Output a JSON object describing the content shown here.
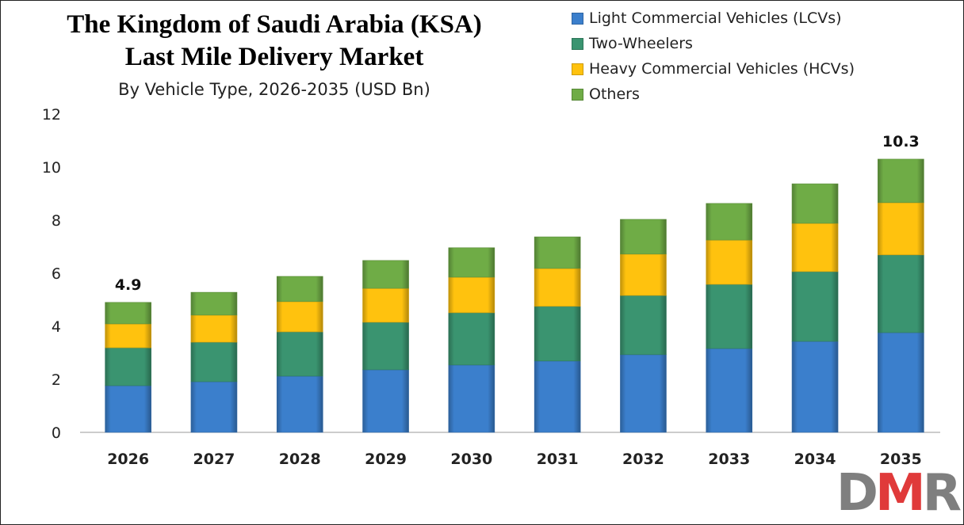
{
  "chart_data": {
    "type": "bar",
    "stacked": true,
    "title": "The Kingdom of Saudi Arabia (KSA) Last Mile Delivery Market",
    "title_lines": [
      "The Kingdom of Saudi Arabia (KSA)",
      "Last Mile Delivery Market"
    ],
    "subtitle": "By Vehicle Type, 2026-2035 (USD Bn)",
    "xlabel": "",
    "ylabel": "",
    "ylim": [
      0,
      12
    ],
    "yticks": [
      0,
      2,
      4,
      6,
      8,
      10,
      12
    ],
    "grid": false,
    "legend_position": "top-right",
    "categories": [
      "2026",
      "2027",
      "2028",
      "2029",
      "2030",
      "2031",
      "2032",
      "2033",
      "2034",
      "2035"
    ],
    "series": [
      {
        "name": "Light Commercial Vehicles (LCVs)",
        "color": "#3b7fcc",
        "values": [
          1.76,
          1.91,
          2.12,
          2.36,
          2.54,
          2.69,
          2.93,
          3.16,
          3.43,
          3.76
        ]
      },
      {
        "name": "Two-Wheelers",
        "color": "#3a9470",
        "values": [
          1.43,
          1.49,
          1.67,
          1.79,
          1.97,
          2.06,
          2.23,
          2.42,
          2.63,
          2.93
        ]
      },
      {
        "name": "Heavy Commercial Vehicles (HCVs)",
        "color": "#ffc20e",
        "values": [
          0.9,
          1.02,
          1.14,
          1.28,
          1.34,
          1.43,
          1.56,
          1.67,
          1.82,
          1.97
        ]
      },
      {
        "name": "Others",
        "color": "#6fac46",
        "values": [
          0.81,
          0.86,
          0.95,
          1.05,
          1.11,
          1.19,
          1.31,
          1.38,
          1.49,
          1.64
        ]
      }
    ],
    "annotations": [
      {
        "category": "2026",
        "text": "4.9"
      },
      {
        "category": "2035",
        "text": "10.3"
      }
    ]
  },
  "logo": {
    "text": "DMR",
    "colors": [
      "#7f7f7f",
      "#e03a3a",
      "#7f7f7f"
    ]
  }
}
